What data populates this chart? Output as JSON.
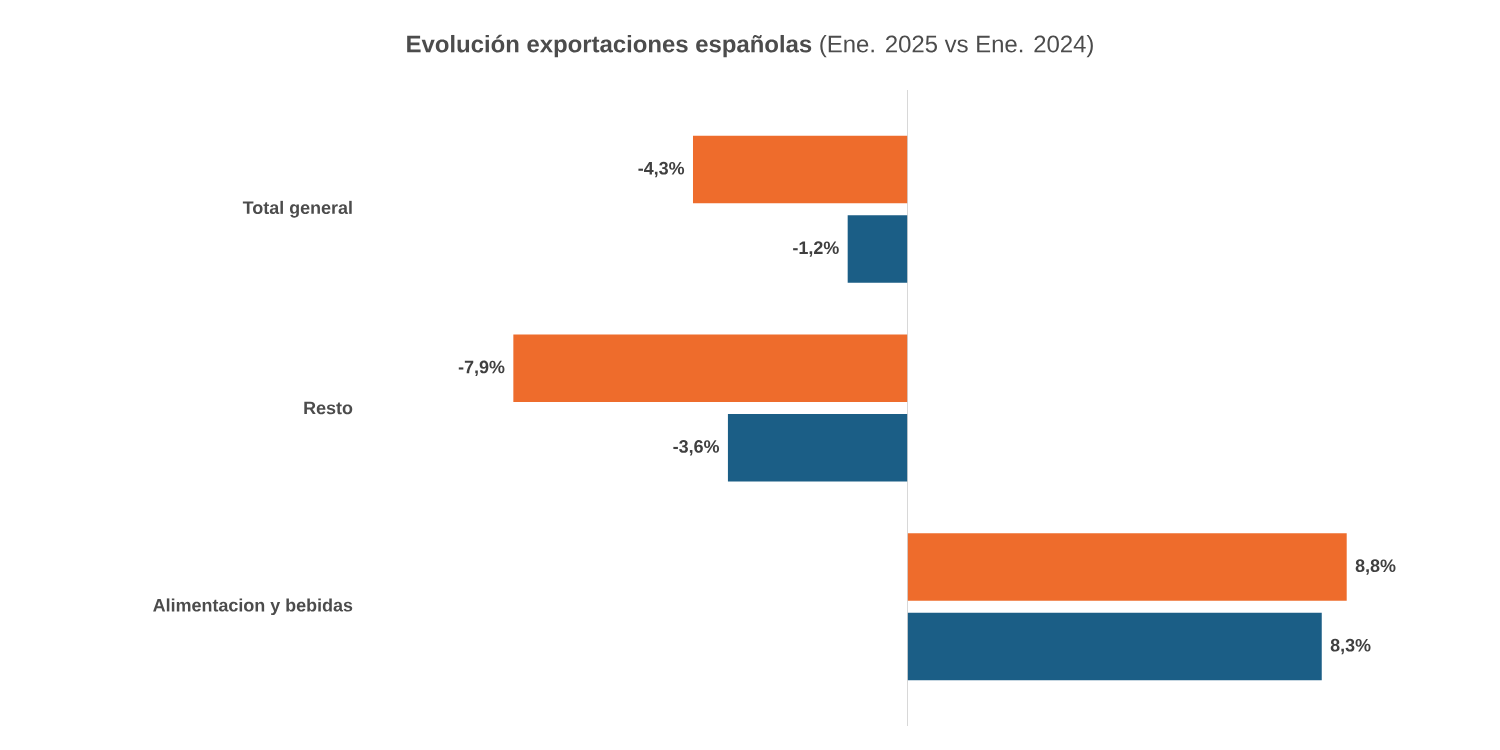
{
  "chart_data": {
    "type": "bar",
    "orientation": "horizontal",
    "title": "**Evolución exportaciones españolas** (Ene. 2025 vs Ene. 2024)",
    "categories": [
      "Total general",
      "Resto",
      "Alimentacion y bebidas"
    ],
    "series": [
      {
        "color": "#ee6c2c",
        "values": [
          -4.3,
          -7.9,
          8.8
        ],
        "value_labels": [
          "-4,3%",
          "-7,9%",
          "8,8%"
        ]
      },
      {
        "color": "#1b5e86",
        "values": [
          -1.2,
          -3.6,
          8.3
        ],
        "value_labels": [
          "-1,2%",
          "-3,6%",
          "8,3%"
        ]
      }
    ]
  }
}
